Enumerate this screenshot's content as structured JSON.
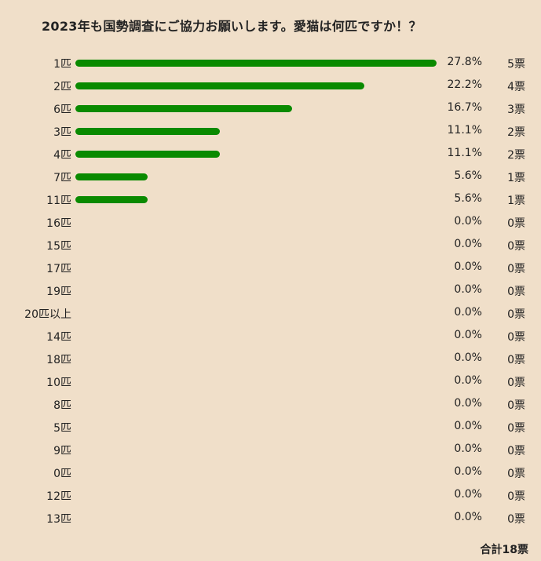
{
  "chart_data": {
    "type": "bar",
    "title": "2023年も国勢調査にご協力お願いします。愛猫は何匹ですか！？",
    "categories": [
      "1匹",
      "2匹",
      "6匹",
      "3匹",
      "4匹",
      "7匹",
      "11匹",
      "16匹",
      "15匹",
      "17匹",
      "19匹",
      "20匹以上",
      "14匹",
      "18匹",
      "10匹",
      "8匹",
      "5匹",
      "9匹",
      "0匹",
      "12匹",
      "13匹"
    ],
    "values": [
      5,
      4,
      3,
      2,
      2,
      1,
      1,
      0,
      0,
      0,
      0,
      0,
      0,
      0,
      0,
      0,
      0,
      0,
      0,
      0,
      0
    ],
    "percent_labels": [
      "27.8%",
      "22.2%",
      "16.7%",
      "11.1%",
      "11.1%",
      "5.6%",
      "5.6%",
      "0.0%",
      "0.0%",
      "0.0%",
      "0.0%",
      "0.0%",
      "0.0%",
      "0.0%",
      "0.0%",
      "0.0%",
      "0.0%",
      "0.0%",
      "0.0%",
      "0.0%",
      "0.0%"
    ],
    "vote_labels": [
      "5票",
      "4票",
      "3票",
      "2票",
      "2票",
      "1票",
      "1票",
      "0票",
      "0票",
      "0票",
      "0票",
      "0票",
      "0票",
      "0票",
      "0票",
      "0票",
      "0票",
      "0票",
      "0票",
      "0票",
      "0票"
    ],
    "total_label": "合計18票",
    "orientation": "horizontal",
    "bar_color": "#0a8a00",
    "background_color": "#f0dfc9"
  }
}
